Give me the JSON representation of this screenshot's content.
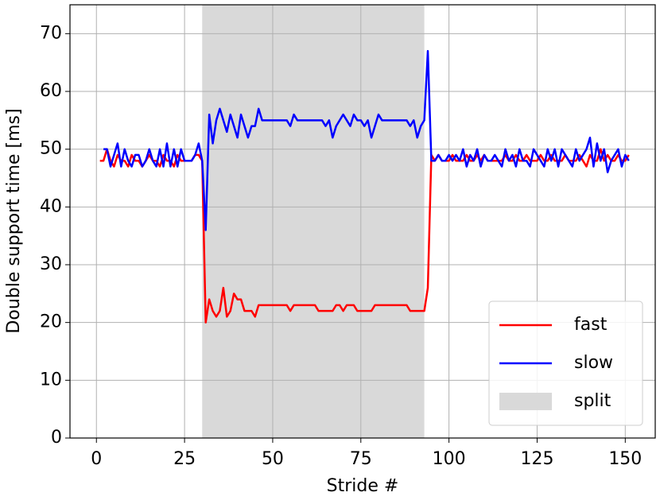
{
  "chart_data": {
    "type": "line",
    "xlabel": "Stride #",
    "ylabel": "Double support time [ms]",
    "x": [
      1,
      2,
      3,
      4,
      5,
      6,
      7,
      8,
      9,
      10,
      11,
      12,
      13,
      14,
      15,
      16,
      17,
      18,
      19,
      20,
      21,
      22,
      23,
      24,
      25,
      26,
      27,
      28,
      29,
      30,
      31,
      32,
      33,
      34,
      35,
      36,
      37,
      38,
      39,
      40,
      41,
      42,
      43,
      44,
      45,
      46,
      47,
      48,
      49,
      50,
      51,
      52,
      53,
      54,
      55,
      56,
      57,
      58,
      59,
      60,
      61,
      62,
      63,
      64,
      65,
      66,
      67,
      68,
      69,
      70,
      71,
      72,
      73,
      74,
      75,
      76,
      77,
      78,
      79,
      80,
      81,
      82,
      83,
      84,
      85,
      86,
      87,
      88,
      89,
      90,
      91,
      92,
      93,
      94,
      95,
      96,
      97,
      98,
      99,
      100,
      101,
      102,
      103,
      104,
      105,
      106,
      107,
      108,
      109,
      110,
      111,
      112,
      113,
      114,
      115,
      116,
      117,
      118,
      119,
      120,
      121,
      122,
      123,
      124,
      125,
      126,
      127,
      128,
      129,
      130,
      131,
      132,
      133,
      134,
      135,
      136,
      137,
      138,
      139,
      140,
      141,
      142,
      143,
      144,
      145,
      146,
      147,
      148,
      149,
      150,
      151
    ],
    "series": [
      {
        "name": "fast",
        "color": "#ff0000",
        "values": [
          48,
          48,
          50,
          48,
          47,
          49,
          48,
          48,
          47,
          49,
          48,
          48,
          47,
          48,
          49,
          48,
          48,
          47,
          49,
          48,
          48,
          47,
          49,
          48,
          48,
          48,
          48,
          49,
          49,
          48,
          20,
          24,
          22,
          21,
          22,
          26,
          21,
          22,
          25,
          24,
          24,
          22,
          22,
          22,
          21,
          23,
          23,
          23,
          23,
          23,
          23,
          23,
          23,
          23,
          22,
          23,
          23,
          23,
          23,
          23,
          23,
          23,
          22,
          22,
          22,
          22,
          22,
          23,
          23,
          22,
          23,
          23,
          23,
          22,
          22,
          22,
          22,
          22,
          23,
          23,
          23,
          23,
          23,
          23,
          23,
          23,
          23,
          23,
          22,
          22,
          22,
          22,
          22,
          26,
          49,
          48,
          49,
          48,
          48,
          48,
          49,
          48,
          48,
          48,
          49,
          48,
          48,
          49,
          48,
          49,
          48,
          48,
          48,
          48,
          48,
          49,
          48,
          48,
          49,
          48,
          48,
          49,
          48,
          48,
          48,
          49,
          48,
          48,
          49,
          48,
          48,
          48,
          49,
          48,
          48,
          48,
          49,
          48,
          47,
          49,
          48,
          48,
          50,
          48,
          49,
          48,
          48,
          49,
          48,
          48,
          49
        ]
      },
      {
        "name": "slow",
        "color": "#0000ff",
        "values": [
          null,
          50,
          50,
          47,
          49,
          51,
          47,
          50,
          48,
          47,
          49,
          49,
          47,
          48,
          50,
          48,
          47,
          50,
          47,
          51,
          47,
          50,
          47,
          50,
          48,
          48,
          48,
          49,
          51,
          48,
          36,
          56,
          51,
          55,
          57,
          55,
          53,
          56,
          54,
          52,
          56,
          54,
          52,
          54,
          54,
          57,
          55,
          55,
          55,
          55,
          55,
          55,
          55,
          55,
          54,
          56,
          55,
          55,
          55,
          55,
          55,
          55,
          55,
          55,
          54,
          55,
          52,
          54,
          55,
          56,
          55,
          54,
          56,
          55,
          55,
          54,
          55,
          52,
          54,
          56,
          55,
          55,
          55,
          55,
          55,
          55,
          55,
          55,
          54,
          55,
          52,
          54,
          55,
          67,
          48,
          48,
          49,
          48,
          48,
          49,
          48,
          49,
          48,
          50,
          47,
          49,
          48,
          50,
          47,
          49,
          48,
          48,
          49,
          48,
          47,
          50,
          48,
          49,
          47,
          50,
          48,
          48,
          47,
          50,
          49,
          48,
          47,
          50,
          48,
          50,
          47,
          50,
          49,
          48,
          47,
          50,
          48,
          49,
          50,
          52,
          47,
          51,
          48,
          50,
          46,
          48,
          49,
          50,
          47,
          49,
          48
        ]
      }
    ],
    "span": {
      "label": "split",
      "x": [
        30,
        93
      ],
      "color": "#d9d9d9"
    },
    "xlim": [
      -7.5,
      158.5
    ],
    "xticks": [
      0,
      25,
      50,
      75,
      100,
      125,
      150
    ],
    "ylim": [
      0,
      75
    ],
    "yticks": [
      0,
      10,
      20,
      30,
      40,
      50,
      60,
      70
    ],
    "grid": true,
    "legend": "lower right"
  }
}
